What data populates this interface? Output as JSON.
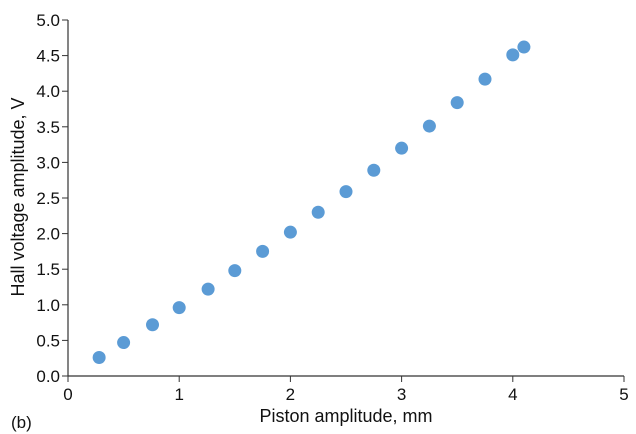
{
  "chart_data": {
    "type": "scatter",
    "panel_label": "(b)",
    "xlabel": "Piston amplitude, mm",
    "ylabel": "Hall voltage amplitude, V",
    "xlim": [
      0,
      5
    ],
    "ylim": [
      0,
      5
    ],
    "x_ticks": [
      "0",
      "1",
      "2",
      "3",
      "4",
      "5"
    ],
    "y_ticks": [
      "0.0",
      "0.5",
      "1.0",
      "1.5",
      "2.0",
      "2.5",
      "3.0",
      "3.5",
      "4.0",
      "4.5",
      "5.0"
    ],
    "grid": false,
    "marker_color": "#5b9bd5",
    "series": [
      {
        "points": [
          {
            "x": 0.28,
            "y": 0.26
          },
          {
            "x": 0.5,
            "y": 0.47
          },
          {
            "x": 0.76,
            "y": 0.72
          },
          {
            "x": 1.0,
            "y": 0.96
          },
          {
            "x": 1.26,
            "y": 1.22
          },
          {
            "x": 1.5,
            "y": 1.48
          },
          {
            "x": 1.75,
            "y": 1.75
          },
          {
            "x": 2.0,
            "y": 2.02
          },
          {
            "x": 2.25,
            "y": 2.3
          },
          {
            "x": 2.5,
            "y": 2.59
          },
          {
            "x": 2.75,
            "y": 2.89
          },
          {
            "x": 3.0,
            "y": 3.2
          },
          {
            "x": 3.25,
            "y": 3.51
          },
          {
            "x": 3.5,
            "y": 3.84
          },
          {
            "x": 3.75,
            "y": 4.17
          },
          {
            "x": 4.0,
            "y": 4.51
          },
          {
            "x": 4.1,
            "y": 4.62
          }
        ]
      }
    ]
  }
}
